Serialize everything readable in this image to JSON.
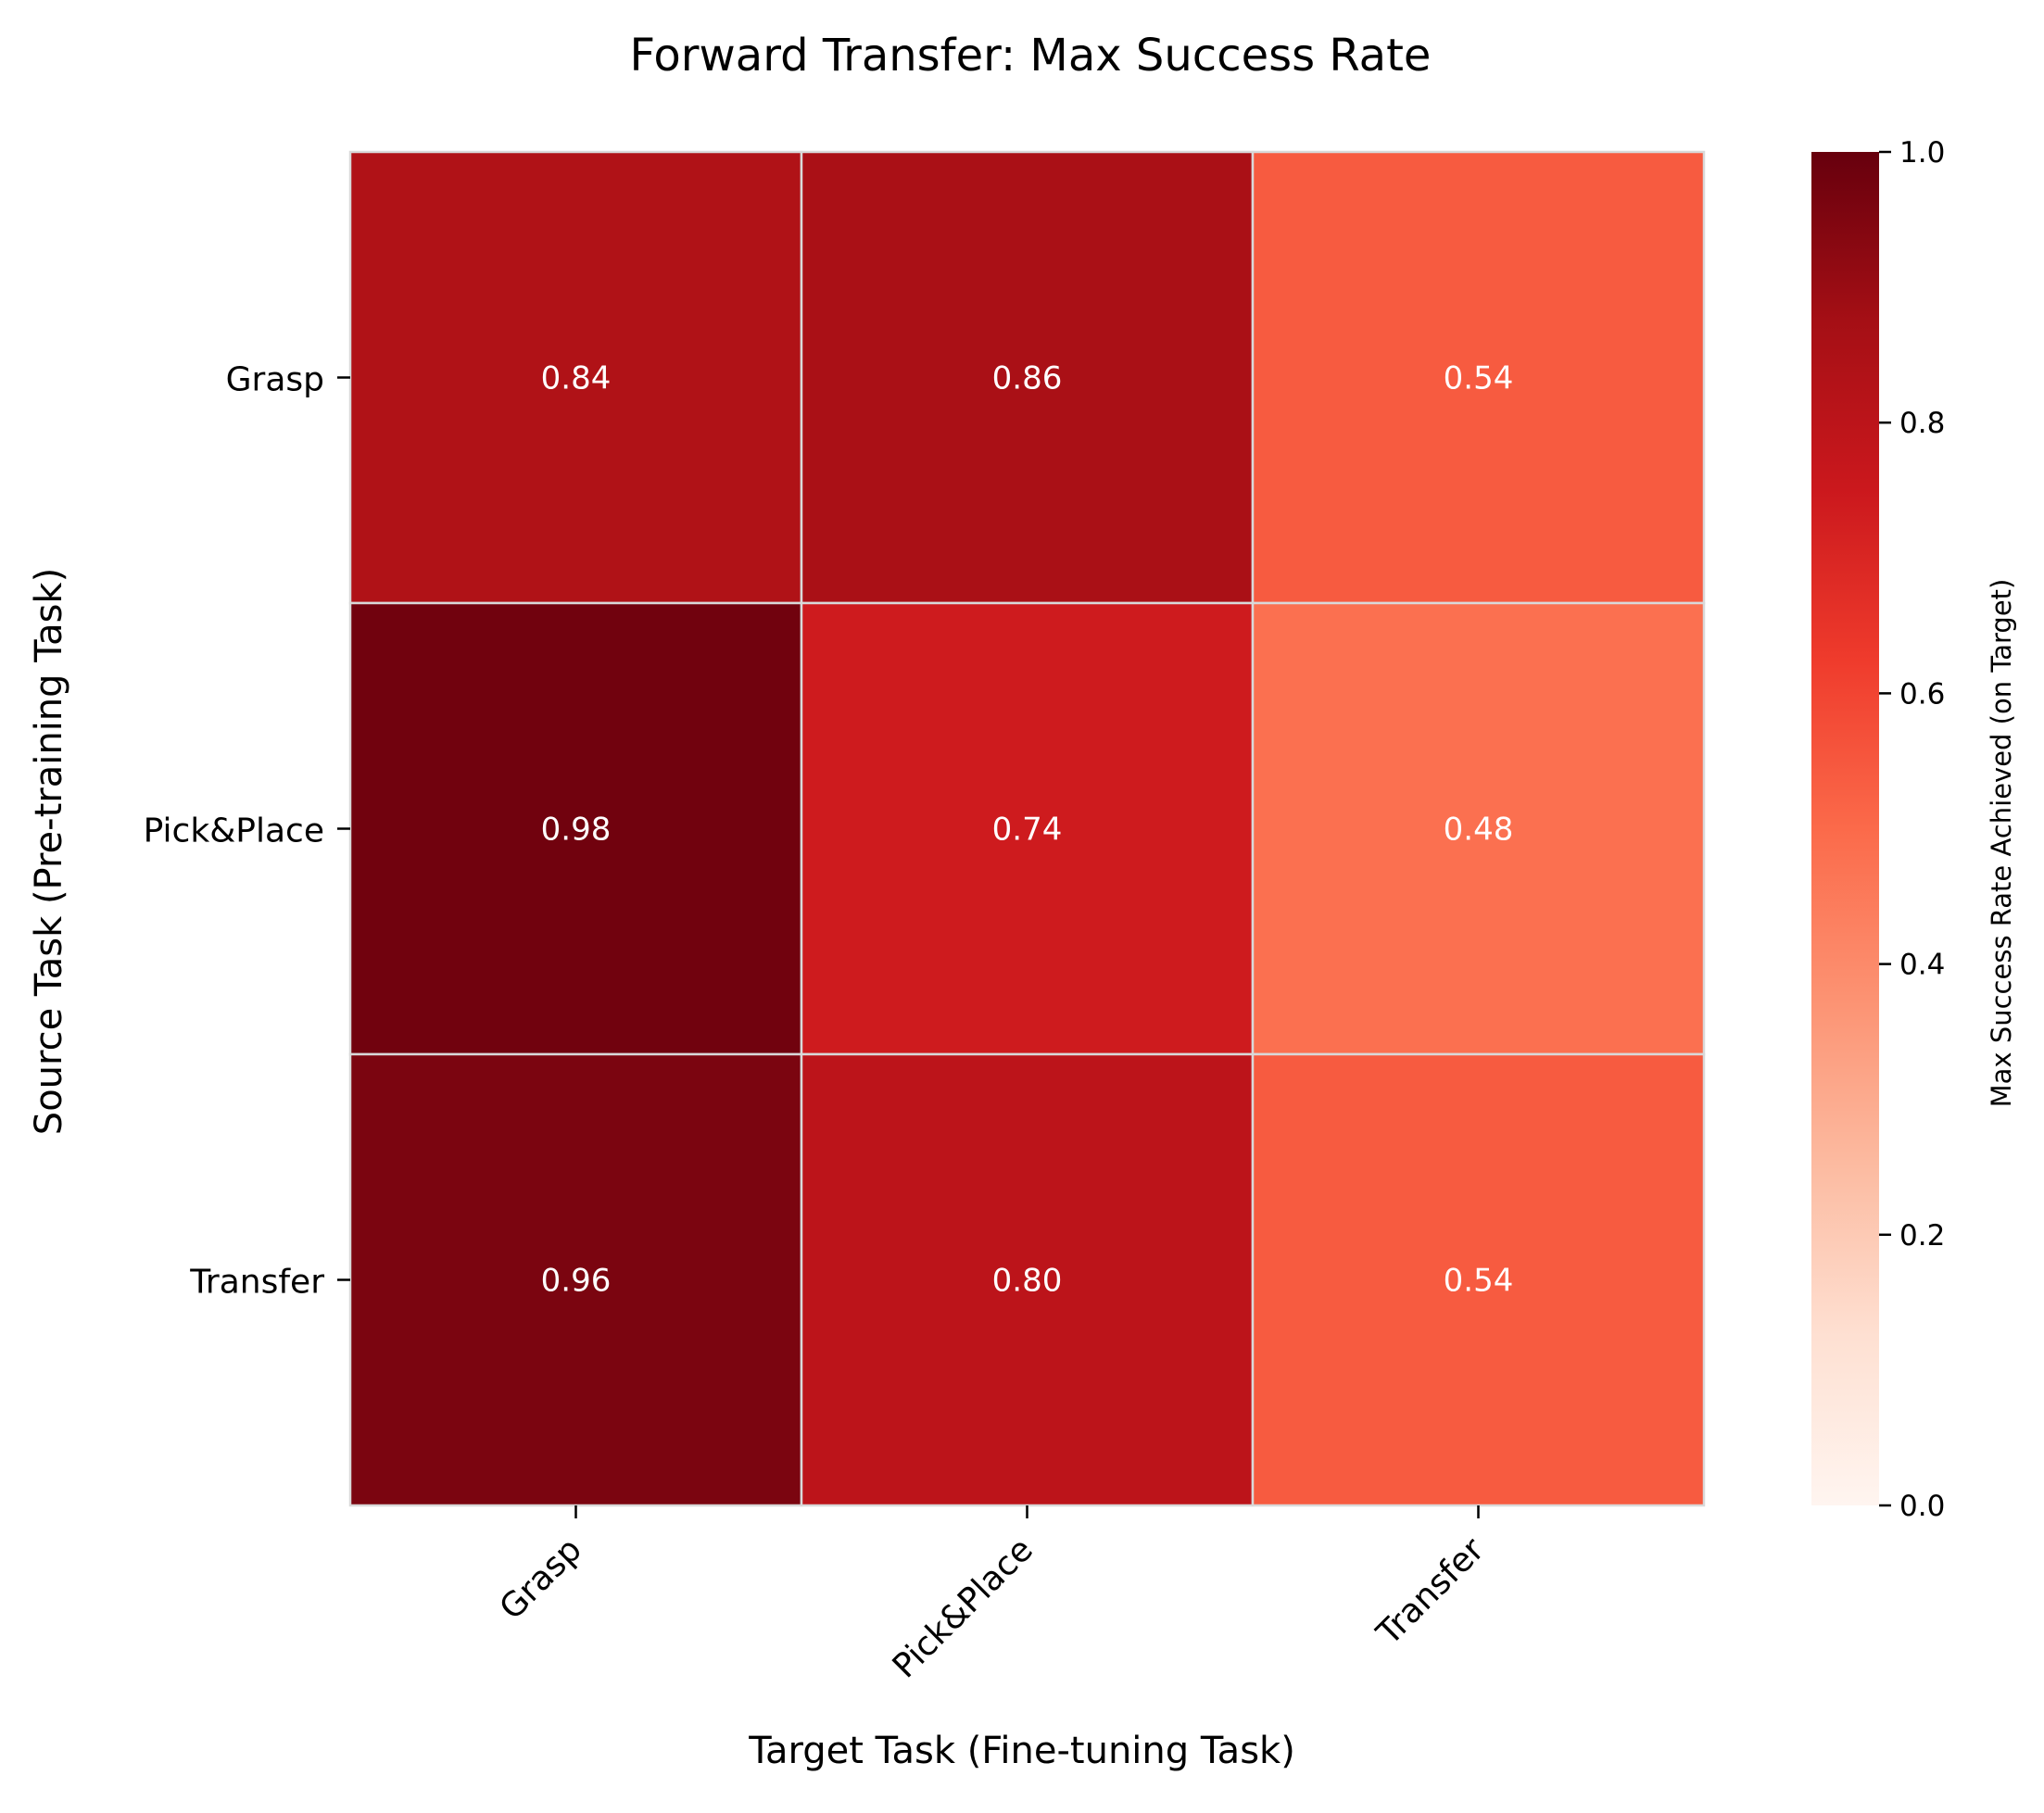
{
  "chart_data": {
    "type": "heatmap",
    "title": "Forward Transfer: Max Success Rate",
    "xlabel": "Target Task (Fine-tuning Task)",
    "ylabel": "Source Task (Pre-training Task)",
    "x_categories": [
      "Grasp",
      "Pick&Place",
      "Transfer"
    ],
    "y_categories": [
      "Grasp",
      "Pick&Place",
      "Transfer"
    ],
    "values": [
      [
        0.84,
        0.86,
        0.54
      ],
      [
        0.98,
        0.74,
        0.48
      ],
      [
        0.96,
        0.8,
        0.54
      ]
    ],
    "value_labels": [
      [
        "0.84",
        "0.86",
        "0.54"
      ],
      [
        "0.98",
        "0.74",
        "0.48"
      ],
      [
        "0.96",
        "0.80",
        "0.54"
      ]
    ],
    "colorbar": {
      "label": "Max Success Rate Achieved (on Target)",
      "range": [
        0,
        1
      ],
      "ticks": [
        0.0,
        0.2,
        0.4,
        0.6,
        0.8,
        1.0
      ],
      "tick_labels": [
        "0.0",
        "0.2",
        "0.4",
        "0.6",
        "0.8",
        "1.0"
      ],
      "colormap": "Reds"
    },
    "cell_border_color": "#d9d9d9",
    "annotation_color": "#ffffff"
  }
}
